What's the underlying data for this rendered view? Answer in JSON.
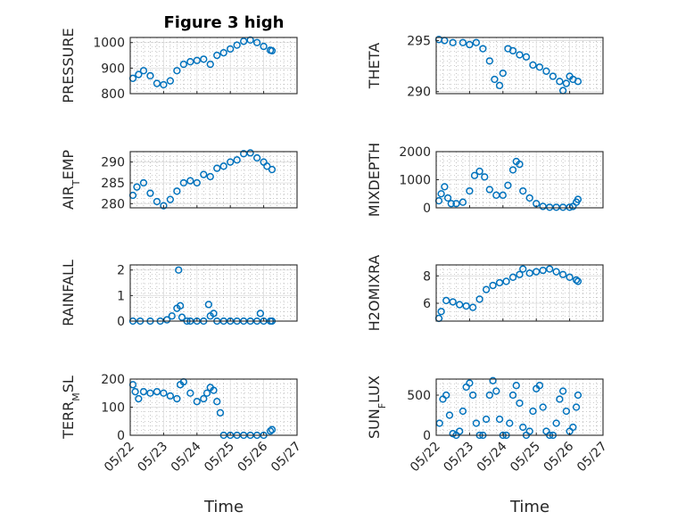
{
  "figure": {
    "title": "Figure 3 high",
    "xlabel": "Time",
    "marker_color": "#0072BD",
    "x_tick_labels": [
      "05/22",
      "05/23",
      "05/24",
      "05/25",
      "05/26",
      "05/27"
    ]
  },
  "chart_data": [
    {
      "type": "scatter",
      "ylabel": "PRESSURE",
      "ylim": [
        800,
        1020
      ],
      "yticks": [
        800,
        900,
        1000
      ],
      "grid": true,
      "x": [
        0.08,
        0.25,
        0.4,
        0.6,
        0.8,
        1.0,
        1.2,
        1.4,
        1.6,
        1.8,
        2.0,
        2.2,
        2.4,
        2.6,
        2.8,
        3.0,
        3.2,
        3.4,
        3.6,
        3.8,
        4.0,
        4.2,
        4.25
      ],
      "y": [
        860,
        875,
        890,
        870,
        840,
        835,
        850,
        890,
        915,
        925,
        930,
        935,
        915,
        950,
        960,
        975,
        990,
        1005,
        1010,
        1000,
        985,
        970,
        968
      ]
    },
    {
      "type": "scatter",
      "ylabel": "THETA",
      "ylim": [
        289.8,
        295.3
      ],
      "yticks": [
        290,
        295
      ],
      "grid": true,
      "x": [
        0.08,
        0.25,
        0.5,
        0.8,
        1.0,
        1.2,
        1.4,
        1.6,
        1.75,
        1.9,
        2.0,
        2.15,
        2.3,
        2.5,
        2.7,
        2.9,
        3.1,
        3.3,
        3.5,
        3.7,
        3.8,
        3.9,
        4.0,
        4.1,
        4.25
      ],
      "y": [
        295.1,
        295.0,
        294.8,
        294.8,
        294.6,
        294.8,
        294.2,
        293.0,
        291.2,
        290.6,
        291.8,
        294.2,
        294.0,
        293.6,
        293.4,
        292.6,
        292.4,
        292.0,
        291.5,
        291.0,
        290.1,
        290.8,
        291.5,
        291.2,
        291.0
      ]
    },
    {
      "type": "scatter",
      "ylabel": "AIR_TEMP",
      "ylim": [
        279,
        292.5
      ],
      "yticks": [
        280,
        285,
        290
      ],
      "grid": true,
      "x": [
        0.08,
        0.2,
        0.4,
        0.6,
        0.8,
        1.0,
        1.2,
        1.4,
        1.6,
        1.8,
        2.0,
        2.2,
        2.4,
        2.6,
        2.8,
        3.0,
        3.2,
        3.4,
        3.6,
        3.8,
        4.0,
        4.1,
        4.25
      ],
      "y": [
        282,
        284,
        285,
        282.5,
        280.5,
        279.5,
        281,
        283,
        285,
        285.5,
        285,
        287,
        286.5,
        288.5,
        289,
        290,
        290.5,
        292,
        292.2,
        291,
        290,
        289,
        288.2
      ]
    },
    {
      "type": "scatter",
      "ylabel": "MIXDEPTH",
      "ylim": [
        0,
        2000
      ],
      "yticks": [
        0,
        1000,
        2000
      ],
      "grid": true,
      "x": [
        0.08,
        0.15,
        0.25,
        0.35,
        0.45,
        0.6,
        0.8,
        1.0,
        1.15,
        1.3,
        1.45,
        1.6,
        1.8,
        2.0,
        2.15,
        2.3,
        2.4,
        2.5,
        2.6,
        2.8,
        3.0,
        3.2,
        3.4,
        3.6,
        3.8,
        4.0,
        4.1,
        4.2,
        4.25
      ],
      "y": [
        250,
        500,
        750,
        350,
        150,
        150,
        200,
        600,
        1150,
        1300,
        1100,
        650,
        450,
        450,
        800,
        1350,
        1650,
        1550,
        600,
        350,
        150,
        50,
        20,
        20,
        20,
        20,
        50,
        200,
        300
      ]
    },
    {
      "type": "scatter",
      "ylabel": "RAINFALL",
      "ylim": [
        0,
        2.2
      ],
      "yticks": [
        0,
        1,
        2
      ],
      "grid": true,
      "x": [
        0.08,
        0.3,
        0.6,
        0.9,
        1.1,
        1.25,
        1.4,
        1.45,
        1.5,
        1.55,
        1.7,
        1.8,
        2.0,
        2.2,
        2.35,
        2.4,
        2.5,
        2.6,
        2.8,
        3.0,
        3.2,
        3.4,
        3.6,
        3.8,
        3.9,
        4.0,
        4.2,
        4.25
      ],
      "y": [
        0,
        0,
        0,
        0,
        0.05,
        0.2,
        0.5,
        2.0,
        0.6,
        0.15,
        0,
        0,
        0,
        0,
        0.65,
        0.2,
        0.3,
        0,
        0,
        0,
        0,
        0,
        0,
        0,
        0.3,
        0,
        0,
        0
      ]
    },
    {
      "type": "scatter",
      "ylabel": "H2OMIXRA",
      "ylim": [
        4.7,
        8.8
      ],
      "yticks": [
        6,
        8
      ],
      "grid": true,
      "x": [
        0.08,
        0.15,
        0.3,
        0.5,
        0.7,
        0.9,
        1.1,
        1.3,
        1.5,
        1.7,
        1.9,
        2.1,
        2.3,
        2.5,
        2.6,
        2.8,
        3.0,
        3.2,
        3.4,
        3.6,
        3.8,
        4.0,
        4.2,
        4.25
      ],
      "y": [
        4.9,
        5.4,
        6.2,
        6.1,
        5.9,
        5.8,
        5.7,
        6.3,
        7.0,
        7.3,
        7.5,
        7.6,
        7.9,
        8.1,
        8.5,
        8.2,
        8.3,
        8.4,
        8.5,
        8.3,
        8.1,
        7.9,
        7.7,
        7.6
      ]
    },
    {
      "type": "scatter",
      "ylabel": "TERR_MSL",
      "ylim": [
        0,
        200
      ],
      "yticks": [
        0,
        100,
        200
      ],
      "grid": true,
      "x": [
        0.08,
        0.15,
        0.25,
        0.4,
        0.6,
        0.8,
        1.0,
        1.2,
        1.4,
        1.5,
        1.6,
        1.8,
        2.0,
        2.2,
        2.3,
        2.4,
        2.5,
        2.6,
        2.7,
        2.8,
        3.0,
        3.2,
        3.4,
        3.6,
        3.8,
        4.0,
        4.2,
        4.25
      ],
      "y": [
        180,
        155,
        130,
        155,
        150,
        155,
        150,
        140,
        130,
        180,
        190,
        150,
        120,
        130,
        150,
        170,
        160,
        120,
        80,
        0,
        0,
        0,
        0,
        0,
        0,
        0,
        15,
        20
      ]
    },
    {
      "type": "scatter",
      "ylabel": "SUN_FLUX",
      "ylim": [
        0,
        700
      ],
      "yticks": [
        0,
        500
      ],
      "grid": true,
      "x": [
        0.1,
        0.2,
        0.3,
        0.4,
        0.5,
        0.6,
        0.7,
        0.8,
        0.9,
        1.0,
        1.1,
        1.2,
        1.3,
        1.4,
        1.5,
        1.6,
        1.7,
        1.8,
        1.9,
        2.0,
        2.1,
        2.2,
        2.3,
        2.4,
        2.5,
        2.6,
        2.7,
        2.8,
        2.9,
        3.0,
        3.1,
        3.2,
        3.3,
        3.4,
        3.5,
        3.6,
        3.7,
        3.8,
        3.9,
        4.0,
        4.1,
        4.2,
        4.25
      ],
      "y": [
        150,
        450,
        500,
        250,
        20,
        0,
        50,
        300,
        600,
        650,
        500,
        150,
        0,
        0,
        200,
        500,
        680,
        550,
        200,
        0,
        0,
        150,
        500,
        620,
        400,
        100,
        0,
        50,
        300,
        580,
        620,
        350,
        50,
        0,
        0,
        150,
        450,
        550,
        300,
        50,
        100,
        350,
        500
      ]
    }
  ]
}
